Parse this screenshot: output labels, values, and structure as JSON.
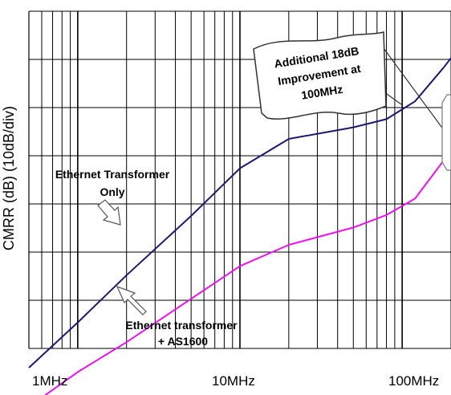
{
  "chart_data": {
    "type": "line",
    "ylabel": "CMRR (dB) (10dB/div)",
    "x_scale": "log",
    "xlim": [
      0.5,
      200
    ],
    "x_ticks": [
      {
        "value": 1,
        "label": "1MHz"
      },
      {
        "value": 10,
        "label": "10MHz"
      },
      {
        "value": 100,
        "label": "100MHz"
      }
    ],
    "grid": true,
    "series": [
      {
        "name": "Ethernet Transformer Only",
        "color": "#1a1a6e",
        "x": [
          0.5,
          1,
          2,
          5,
          10,
          20,
          50,
          80,
          120,
          180,
          200
        ],
        "y": [
          6.0,
          15.4,
          25.2,
          37.5,
          47.4,
          53.5,
          55.9,
          57.6,
          61.3,
          68.3,
          70.3
        ]
      },
      {
        "name": "Ethernet transformer + AS1600",
        "color": "#ee11ee",
        "x": [
          0.5,
          1,
          2,
          5,
          10,
          20,
          50,
          80,
          120,
          180,
          200
        ],
        "y": [
          -2.1,
          5.1,
          11.3,
          20.3,
          27.1,
          31.5,
          35.1,
          37.7,
          41.1,
          49.0,
          51.7
        ]
      }
    ],
    "annotations": [
      {
        "lines": [
          "Ethernet Transformer",
          "Only"
        ]
      },
      {
        "lines": [
          "Ethernet transformer",
          "+ AS1600"
        ]
      },
      {
        "lines": [
          "Additional 18dB",
          "Improvement at",
          "100MHz"
        ]
      }
    ]
  }
}
